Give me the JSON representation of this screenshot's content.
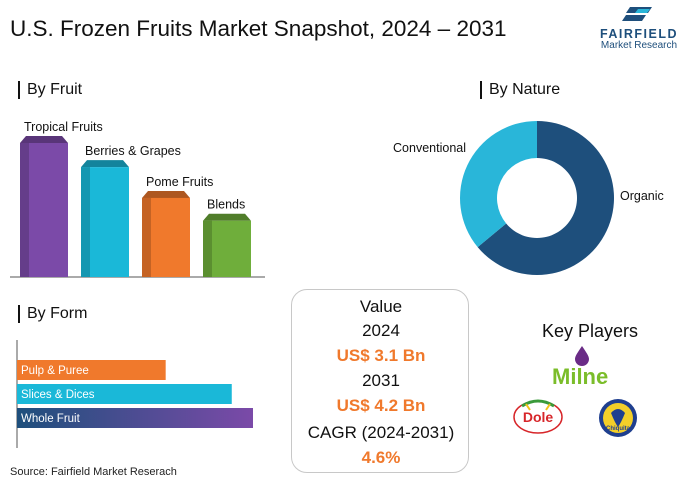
{
  "title": "U.S. Frozen Fruits Market Snapshot, 2024 – 2031",
  "logo": {
    "name": "FAIRFIELD",
    "sub": "Market Research"
  },
  "sections": {
    "by_fruit": "By Fruit",
    "by_nature": "By Nature",
    "by_form": "By Form"
  },
  "value_box": {
    "heading": "Value",
    "year1": "2024",
    "value1": "US$ 3.1 Bn",
    "year2": "2031",
    "value2": "US$ 4.2 Bn",
    "cagr_label": "CAGR (2024-2031)",
    "cagr_value": "4.6%"
  },
  "key_players": {
    "title": "Key Players",
    "logos": [
      {
        "name": "Milne",
        "text": "Milne"
      },
      {
        "name": "Dole",
        "text": "Dole"
      },
      {
        "name": "Chiquita",
        "text": "Chiquita"
      }
    ]
  },
  "source": "Source: Fairfield Market Reserach",
  "colors": {
    "purple": "#7b4aa8",
    "teal": "#1ab8d8",
    "orange": "#f0792c",
    "green": "#6fae3b",
    "navy": "#1e4f7c",
    "cyan": "#29b6d9"
  },
  "chart_data": [
    {
      "type": "bar",
      "title": "By Fruit",
      "categories": [
        "Tropical Fruits",
        "Berries & Grapes",
        "Pome Fruits",
        "Blends"
      ],
      "values": [
        1.0,
        0.82,
        0.59,
        0.42
      ],
      "colors": [
        "#7b4aa8",
        "#1ab8d8",
        "#f0792c",
        "#6fae3b"
      ]
    },
    {
      "type": "pie",
      "title": "By Nature",
      "labels": [
        "Organic",
        "Conventional"
      ],
      "values": [
        64,
        36
      ],
      "colors": [
        "#1e4f7c",
        "#29b6d9"
      ]
    },
    {
      "type": "bar",
      "orientation": "horizontal",
      "title": "By Form",
      "categories": [
        "Pulp & Puree",
        "Slices & Dices",
        "Whole Fruit"
      ],
      "values": [
        0.63,
        0.91,
        1.0
      ],
      "colors": [
        "#f0792c",
        "#1ab8d8",
        "#7b4aa8"
      ]
    }
  ]
}
